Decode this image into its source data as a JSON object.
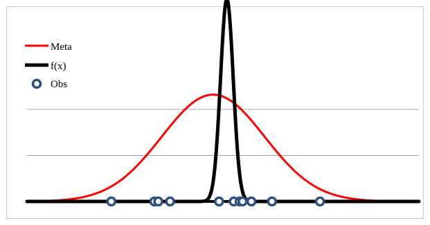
{
  "chart_data": {
    "type": "line",
    "title": "",
    "xlabel": "",
    "ylabel": "",
    "grid": true,
    "legend_placement": "top-left",
    "xlim": [
      -4,
      4
    ],
    "ylim": [
      0,
      4
    ],
    "yticks": [
      1,
      2
    ],
    "colors": {
      "meta": "#ff0000",
      "fx": "#000000",
      "obs_edge": "#2f4f7f",
      "obs_fill": "#ffffff",
      "gridline": "#a0a0a0",
      "frame": "#c8c8c8"
    },
    "series": [
      {
        "name": "Meta",
        "kind": "normal-curve",
        "mean": -0.2,
        "sd": 1.05,
        "peak": 2.32
      },
      {
        "name": "f(x)",
        "kind": "normal-curve",
        "mean": 0.08,
        "sd": 0.13,
        "peak": 4.4
      },
      {
        "name": "Obs",
        "kind": "scatter",
        "x": [
          -2.28,
          -1.4,
          -1.32,
          -1.08,
          -0.08,
          0.22,
          0.34,
          0.4,
          0.58,
          1.0,
          1.98
        ],
        "y": [
          0,
          0,
          0,
          0,
          0,
          0,
          0,
          0,
          0,
          0,
          0
        ]
      }
    ]
  }
}
